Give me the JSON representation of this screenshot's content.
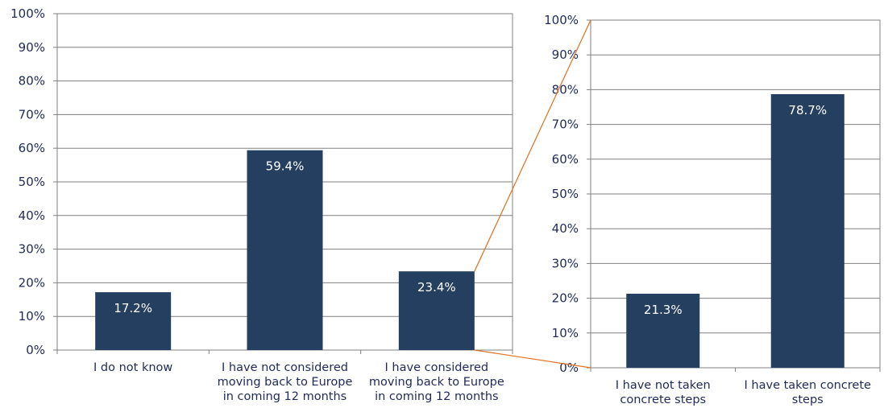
{
  "colors": {
    "bar": "#253f60",
    "grid": "#808080",
    "connector": "#e0701f",
    "text": "#1f2a5a"
  },
  "chart_data": [
    {
      "type": "bar",
      "categories": [
        [
          "I do not know"
        ],
        [
          "I have not considered",
          "moving back to Europe",
          "in coming 12 months"
        ],
        [
          "I have considered",
          "moving back to Europe",
          "in coming 12 months"
        ]
      ],
      "values": [
        17.2,
        59.4,
        23.4
      ],
      "data_labels": [
        "17.2%",
        "59.4%",
        "23.4%"
      ],
      "ylim": [
        0,
        100
      ],
      "yticks": [
        "0%",
        "10%",
        "20%",
        "30%",
        "40%",
        "50%",
        "60%",
        "70%",
        "80%",
        "90%",
        "100%"
      ],
      "grid": true
    },
    {
      "type": "bar",
      "categories": [
        [
          "I have not taken",
          "concrete steps"
        ],
        [
          "I have taken concrete",
          "steps"
        ]
      ],
      "values": [
        21.3,
        78.7
      ],
      "data_labels": [
        "21.3%",
        "78.7%"
      ],
      "ylim": [
        0,
        100
      ],
      "yticks": [
        "0%",
        "10%",
        "20%",
        "30%",
        "40%",
        "50%",
        "60%",
        "70%",
        "80%",
        "90%",
        "100%"
      ],
      "grid": true
    }
  ]
}
